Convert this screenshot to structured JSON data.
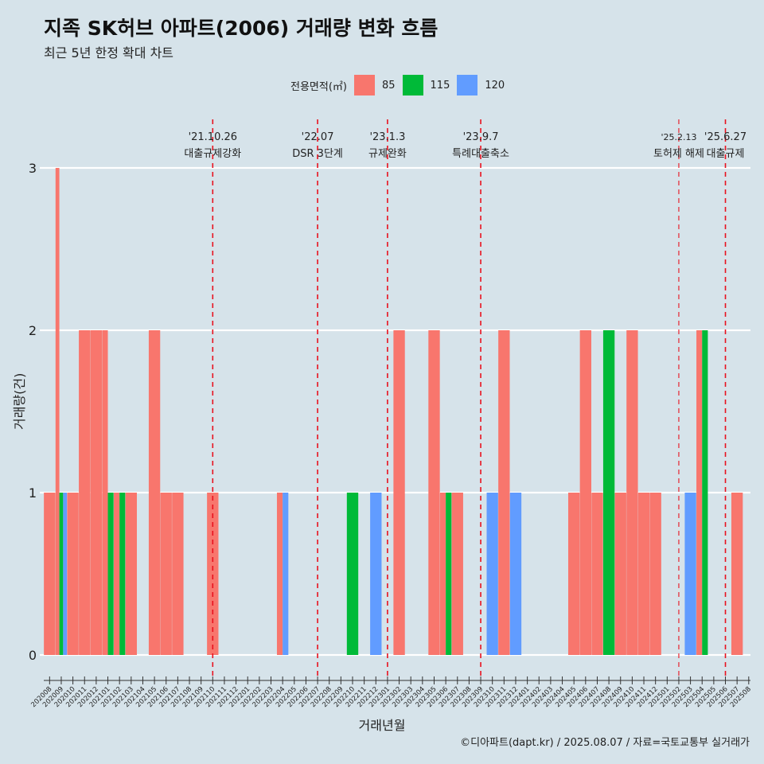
{
  "title": "지족 SK허브 아파트(2006) 거래량 변화 흐름",
  "subtitle": "최근 5년 한정 확대 차트",
  "legend": {
    "title": "전용면적(㎡)",
    "items": [
      {
        "label": "85",
        "color": "#F8766D"
      },
      {
        "label": "115",
        "color": "#00BA38"
      },
      {
        "label": "120",
        "color": "#619CFF"
      }
    ]
  },
  "caption": "©디아파트(dapt.kr) / 2025.08.07 / 자료=국토교통부 실거래가",
  "chart_data": {
    "type": "bar",
    "xlabel": "거래년월",
    "ylabel": "거래량(건)",
    "ylim": [
      0,
      3
    ],
    "yticks": [
      0,
      1,
      2,
      3
    ],
    "grid": true,
    "legend_position": "top",
    "categories": [
      "202008",
      "202009",
      "202010",
      "202011",
      "202012",
      "202101",
      "202102",
      "202103",
      "202104",
      "202105",
      "202106",
      "202107",
      "202108",
      "202109",
      "202110",
      "202111",
      "202112",
      "202201",
      "202202",
      "202203",
      "202204",
      "202205",
      "202206",
      "202207",
      "202208",
      "202209",
      "202210",
      "202211",
      "202212",
      "202301",
      "202302",
      "202303",
      "202304",
      "202305",
      "202306",
      "202307",
      "202308",
      "202309",
      "202310",
      "202311",
      "202312",
      "202401",
      "202402",
      "202403",
      "202404",
      "202405",
      "202406",
      "202407",
      "202408",
      "202409",
      "202410",
      "202411",
      "202412",
      "202501",
      "202502",
      "202503",
      "202504",
      "202505",
      "202506",
      "202507",
      "202508"
    ],
    "series": [
      {
        "name": "85",
        "color": "#F8766D",
        "values": [
          1,
          3,
          1,
          2,
          2,
          2,
          1,
          1,
          0,
          2,
          1,
          1,
          0,
          0,
          1,
          0,
          0,
          0,
          0,
          0,
          1,
          0,
          0,
          0,
          0,
          0,
          0,
          0,
          0,
          0,
          2,
          0,
          0,
          2,
          1,
          1,
          0,
          0,
          0,
          2,
          0,
          0,
          0,
          0,
          0,
          1,
          2,
          1,
          0,
          1,
          2,
          1,
          1,
          0,
          0,
          0,
          2,
          0,
          0,
          1,
          0
        ]
      },
      {
        "name": "115",
        "color": "#00BA38",
        "values": [
          0,
          1,
          0,
          0,
          0,
          1,
          1,
          0,
          0,
          0,
          0,
          0,
          0,
          0,
          0,
          0,
          0,
          0,
          0,
          0,
          0,
          0,
          0,
          0,
          0,
          0,
          1,
          0,
          0,
          0,
          0,
          0,
          0,
          0,
          1,
          0,
          0,
          0,
          0,
          0,
          0,
          0,
          0,
          0,
          0,
          0,
          0,
          0,
          2,
          0,
          0,
          0,
          0,
          0,
          0,
          0,
          2,
          0,
          0,
          0,
          0
        ]
      },
      {
        "name": "120",
        "color": "#619CFF",
        "values": [
          0,
          1,
          0,
          0,
          0,
          0,
          0,
          0,
          0,
          0,
          0,
          0,
          0,
          0,
          0,
          0,
          0,
          0,
          0,
          0,
          1,
          0,
          0,
          0,
          0,
          0,
          0,
          0,
          1,
          0,
          0,
          0,
          0,
          0,
          0,
          0,
          0,
          0,
          1,
          0,
          1,
          0,
          0,
          0,
          0,
          0,
          0,
          0,
          0,
          0,
          0,
          0,
          0,
          0,
          0,
          1,
          0,
          0,
          0,
          0,
          0
        ]
      }
    ],
    "annotations": [
      {
        "x": "202110",
        "date": "'21.10.26",
        "text": "대출규제강화",
        "style": "major"
      },
      {
        "x": "202207",
        "date": "'22.07",
        "text": "DSR 3단계",
        "style": "major"
      },
      {
        "x": "202301",
        "date": "'23.1.3",
        "text": "규제완화",
        "style": "major"
      },
      {
        "x": "202309",
        "date": "'23.9.7",
        "text": "특례대출축소",
        "style": "major"
      },
      {
        "x": "202502",
        "date": "'25.2.13",
        "text": "토허제 해제",
        "style": "minor"
      },
      {
        "x": "202506",
        "date": "'25.6.27",
        "text": "대출규제",
        "style": "major"
      }
    ]
  }
}
